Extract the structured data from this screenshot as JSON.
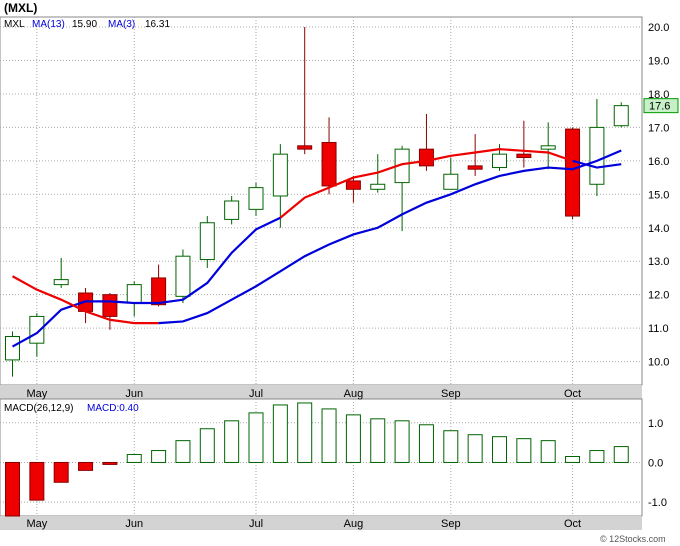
{
  "title": "(MXL)",
  "watermark": "© 12Stocks.com",
  "legend": {
    "symbol": "MXL",
    "ma13": "MA(13)",
    "ma13_value": "15.90",
    "ma3": "MA(3)",
    "ma3_value": "16.31",
    "macd": "MACD(26,12,9)",
    "macd_value": "MACD:0.40"
  },
  "last_price_label": "17.6",
  "colors": {
    "up_fill": "#ffffff",
    "up_stroke": "#006400",
    "down_fill": "#ee0000",
    "down_stroke": "#8b0000",
    "ma13": "#0000dd",
    "ma3_down": "#ee0000",
    "ma3_up": "#0000dd",
    "grid": "#aaaaaa",
    "price_tag": "#c8f0c8"
  },
  "chart_data": [
    {
      "type": "candlestick",
      "x_labels": [
        "May",
        "Jun",
        "Jul",
        "Aug",
        "Sep",
        "Oct"
      ],
      "x_label_index": [
        1,
        5,
        10,
        14,
        18,
        23
      ],
      "y_ticks": [
        10.0,
        11.0,
        12.0,
        13.0,
        14.0,
        15.0,
        16.0,
        17.0,
        18.0,
        19.0,
        20.0
      ],
      "ylim": [
        9.3,
        20.3
      ],
      "candles": [
        {
          "o": 10.05,
          "h": 10.9,
          "l": 9.55,
          "c": 10.75
        },
        {
          "o": 10.55,
          "h": 11.45,
          "l": 10.15,
          "c": 11.35
        },
        {
          "o": 12.3,
          "h": 13.1,
          "l": 12.2,
          "c": 12.45
        },
        {
          "o": 12.05,
          "h": 12.2,
          "l": 11.15,
          "c": 11.5
        },
        {
          "o": 12.0,
          "h": 12.05,
          "l": 10.95,
          "c": 11.35
        },
        {
          "o": 11.75,
          "h": 12.4,
          "l": 11.35,
          "c": 12.3
        },
        {
          "o": 12.5,
          "h": 12.9,
          "l": 11.65,
          "c": 11.7
        },
        {
          "o": 11.95,
          "h": 13.35,
          "l": 11.75,
          "c": 13.15
        },
        {
          "o": 13.05,
          "h": 14.35,
          "l": 12.8,
          "c": 14.15
        },
        {
          "o": 14.25,
          "h": 14.95,
          "l": 14.1,
          "c": 14.8
        },
        {
          "o": 14.55,
          "h": 15.35,
          "l": 14.35,
          "c": 15.2
        },
        {
          "o": 14.95,
          "h": 16.5,
          "l": 14.0,
          "c": 16.2
        },
        {
          "o": 16.45,
          "h": 20.0,
          "l": 16.2,
          "c": 16.35
        },
        {
          "o": 16.55,
          "h": 17.3,
          "l": 15.0,
          "c": 15.25
        },
        {
          "o": 15.4,
          "h": 15.55,
          "l": 14.75,
          "c": 15.15
        },
        {
          "o": 15.15,
          "h": 16.2,
          "l": 15.05,
          "c": 15.3
        },
        {
          "o": 15.35,
          "h": 16.45,
          "l": 13.9,
          "c": 16.35
        },
        {
          "o": 16.35,
          "h": 17.4,
          "l": 15.7,
          "c": 15.85
        },
        {
          "o": 15.15,
          "h": 16.1,
          "l": 15.15,
          "c": 15.6
        },
        {
          "o": 15.85,
          "h": 16.8,
          "l": 15.55,
          "c": 15.75
        },
        {
          "o": 15.8,
          "h": 16.5,
          "l": 15.7,
          "c": 16.2
        },
        {
          "o": 16.2,
          "h": 17.2,
          "l": 15.8,
          "c": 16.1
        },
        {
          "o": 16.35,
          "h": 17.15,
          "l": 15.75,
          "c": 16.45
        },
        {
          "o": 16.95,
          "h": 17.0,
          "l": 14.25,
          "c": 14.35
        },
        {
          "o": 15.3,
          "h": 17.85,
          "l": 14.95,
          "c": 17.0
        },
        {
          "o": 17.05,
          "h": 17.75,
          "l": 17.0,
          "c": 17.65
        }
      ],
      "ma13": {
        "name": "MA(13)",
        "start_index": 0,
        "values": [
          10.45,
          10.85,
          11.55,
          11.8,
          11.8,
          11.75,
          11.75,
          11.85,
          12.35,
          13.25,
          13.95,
          14.3,
          14.9,
          15.2,
          15.5,
          15.65,
          15.9,
          16.0,
          16.15,
          16.25,
          16.35,
          16.3,
          16.25,
          16.0,
          15.8,
          15.9
        ]
      },
      "ma3": {
        "name": "MA(3)",
        "start_index": 0,
        "values": [
          12.55,
          12.15,
          11.85,
          11.5,
          11.25,
          11.15,
          11.15,
          11.2,
          11.45,
          11.85,
          12.25,
          12.7,
          13.15,
          13.5,
          13.8,
          14.0,
          14.4,
          14.75,
          15.0,
          15.3,
          15.55,
          15.7,
          15.8,
          15.75,
          16.0,
          16.31
        ],
        "flip_to_down_at": 11,
        "flip_to_up_at": 23
      }
    },
    {
      "type": "bar",
      "name": "MACD(26,12,9)",
      "y_ticks": [
        1.0,
        0.0,
        -1.0
      ],
      "y_tick_labels": [
        "1.0",
        "0.0",
        "-1.0"
      ],
      "ylim": [
        -1.35,
        1.6
      ],
      "values": [
        -1.4,
        -0.95,
        -0.5,
        -0.2,
        -0.05,
        0.2,
        0.3,
        0.55,
        0.85,
        1.05,
        1.25,
        1.45,
        1.5,
        1.35,
        1.2,
        1.1,
        1.05,
        0.95,
        0.8,
        0.7,
        0.65,
        0.6,
        0.55,
        0.15,
        0.3,
        0.4
      ]
    }
  ]
}
